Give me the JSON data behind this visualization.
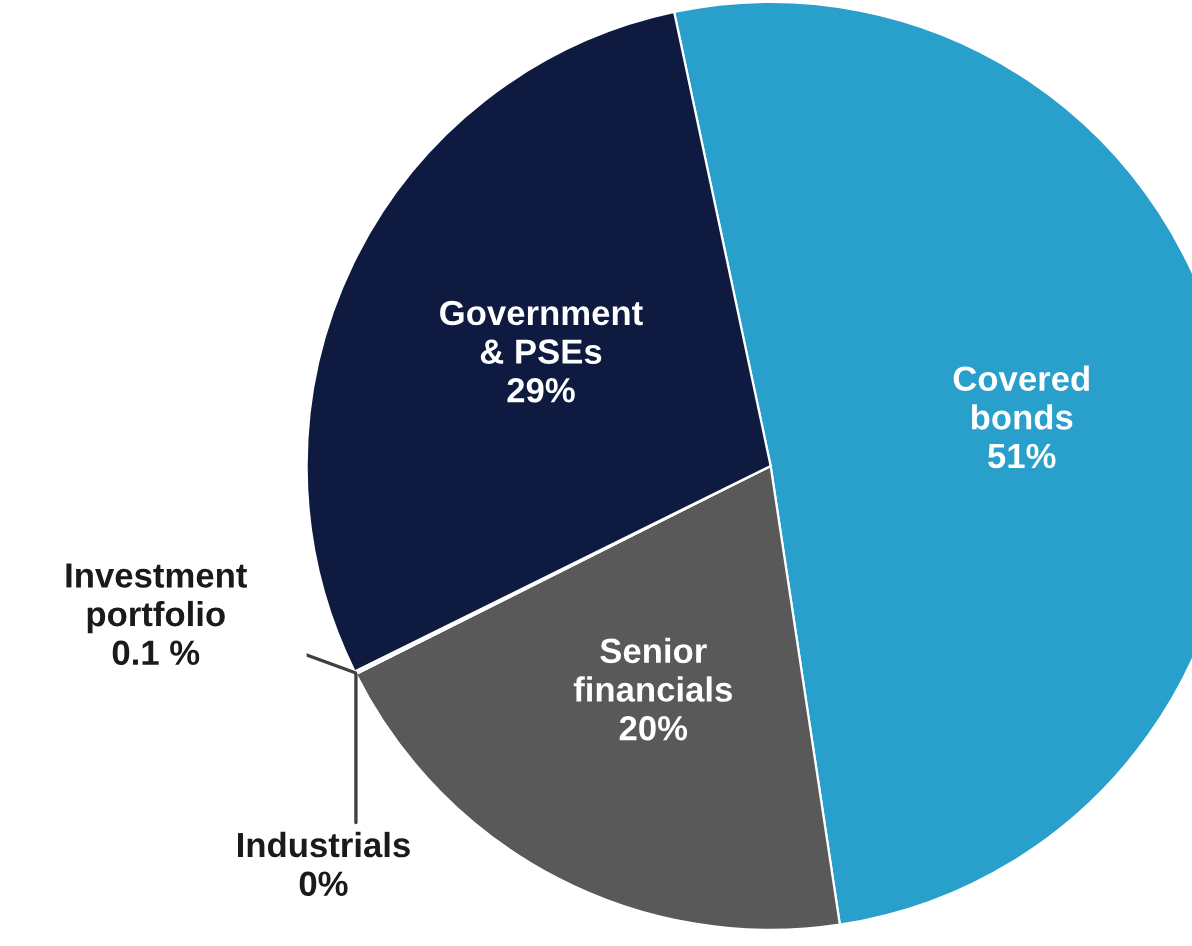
{
  "chart_data": {
    "type": "pie",
    "categories": [
      "Covered bonds",
      "Senior financials",
      "Industrials",
      "Investment portfolio",
      "Government & PSEs"
    ],
    "values": [
      51,
      20,
      0,
      0.1,
      29
    ],
    "value_labels": [
      "51%",
      "20%",
      "0%",
      "0.1 %",
      "29%"
    ],
    "colors": [
      "#29a0cc",
      "#595959",
      "#7f7f7f",
      "#d9d9d9",
      "#0e1a40"
    ]
  }
}
